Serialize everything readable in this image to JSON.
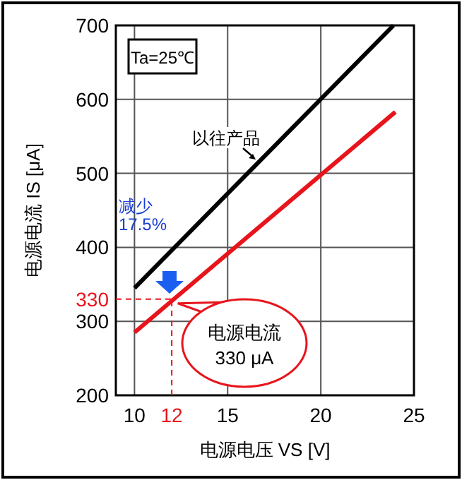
{
  "chart_data": {
    "type": "line",
    "xlabel": "电源电压 VS [V]",
    "ylabel": "电源电流 IS [μA]",
    "series": [
      {
        "color": "#000000",
        "x": [
          10,
          23.9
        ],
        "values": [
          345,
          700
        ]
      },
      {
        "color": "#e8141c",
        "x": [
          10,
          24
        ],
        "values": [
          285,
          583
        ]
      }
    ],
    "xlim": [
      9,
      25
    ],
    "ylim": [
      200,
      700
    ],
    "xticks": [
      10,
      15,
      20,
      25
    ],
    "yticks": [
      200,
      300,
      400,
      500,
      600,
      700
    ],
    "grid": true,
    "marker": "none",
    "line_style": "solid",
    "ref_lines": [
      {
        "axis": "y",
        "value": 330,
        "label": "330",
        "color": "#e8141c",
        "line_style": "dashed"
      },
      {
        "axis": "x",
        "value": 12,
        "label": "12",
        "color": "#e8141c",
        "line_style": "dashed"
      }
    ],
    "annotations": [
      "Ta=25℃",
      "以往产品",
      "减少\n17.5%",
      "电源电流\n330 μA"
    ]
  }
}
